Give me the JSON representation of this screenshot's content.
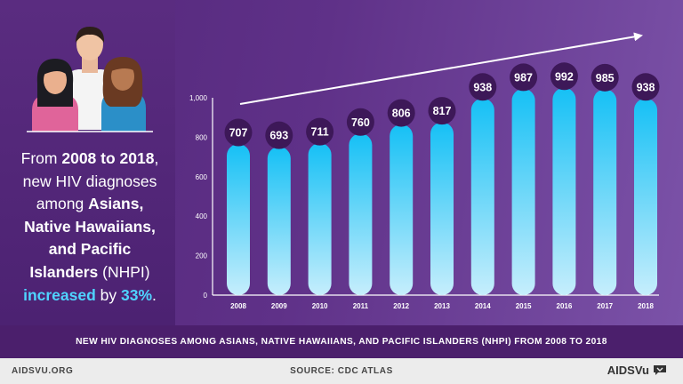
{
  "headline": {
    "line1_pre": "From ",
    "line1_bold": "2008 to 2018",
    "line1_post": ",",
    "line2": "new HIV diagnoses",
    "line3_pre": "among ",
    "line3_bold": "Asians,",
    "line4_bold": "Native Hawaiians,",
    "line5_bold": "and Pacific",
    "line6_bold": "Islanders",
    "line6_post": " (NHPI)",
    "line7_hl": "increased",
    "line7_mid": " by ",
    "line7_pct": "33%",
    "line7_post": "."
  },
  "colors": {
    "bar_top": "#15c0f5",
    "bar_bottom": "#c6eefc",
    "bubble": "#3d1858",
    "accent": "#4fd3ff"
  },
  "chart_data": {
    "type": "bar",
    "categories": [
      "2008",
      "2009",
      "2010",
      "2011",
      "2012",
      "2013",
      "2014",
      "2015",
      "2016",
      "2017",
      "2018"
    ],
    "values": [
      707,
      693,
      711,
      760,
      806,
      817,
      938,
      987,
      992,
      985,
      938
    ],
    "y_ticks": [
      "0",
      "200",
      "400",
      "600",
      "800",
      "1,000"
    ],
    "ylim": [
      0,
      1000
    ],
    "title": "NEW HIV DIAGNOSES AMONG ASIANS, NATIVE HAWAIIANS, AND PACIFIC ISLANDERS (NHPI) FROM 2008 TO 2018",
    "xlabel": "",
    "ylabel": "",
    "grid": false,
    "trend_arrow": true
  },
  "footer": {
    "left": "AIDSVU.ORG",
    "center": "SOURCE: CDC ATLAS",
    "logo": "AIDSVu"
  }
}
